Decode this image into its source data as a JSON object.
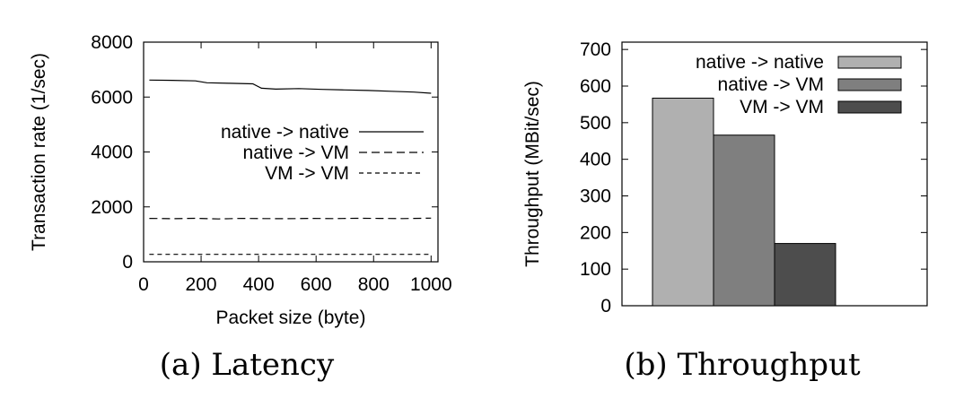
{
  "chart_data": [
    {
      "type": "line",
      "caption": "(a) Latency",
      "xlabel": "Packet size (byte)",
      "ylabel": "Transaction rate (1/sec)",
      "xlim": [
        0,
        1024
      ],
      "ylim": [
        0,
        8000
      ],
      "x_ticks": [
        0,
        200,
        400,
        600,
        800,
        1000
      ],
      "y_ticks": [
        0,
        2000,
        4000,
        6000,
        8000
      ],
      "legend_position": "middle-right",
      "series": [
        {
          "name": "native -> native",
          "style": "solid",
          "points": [
            [
              20,
              6620
            ],
            [
              100,
              6610
            ],
            [
              180,
              6590
            ],
            [
              220,
              6520
            ],
            [
              300,
              6500
            ],
            [
              380,
              6480
            ],
            [
              410,
              6320
            ],
            [
              460,
              6290
            ],
            [
              540,
              6310
            ],
            [
              620,
              6280
            ],
            [
              700,
              6260
            ],
            [
              780,
              6240
            ],
            [
              860,
              6210
            ],
            [
              940,
              6180
            ],
            [
              1000,
              6140
            ]
          ]
        },
        {
          "name": "native -> VM",
          "style": "dashed",
          "points": [
            [
              20,
              1580
            ],
            [
              100,
              1570
            ],
            [
              180,
              1585
            ],
            [
              260,
              1560
            ],
            [
              340,
              1580
            ],
            [
              420,
              1575
            ],
            [
              500,
              1570
            ],
            [
              580,
              1580
            ],
            [
              660,
              1575
            ],
            [
              740,
              1585
            ],
            [
              820,
              1580
            ],
            [
              900,
              1575
            ],
            [
              1000,
              1590
            ]
          ]
        },
        {
          "name": "VM -> VM",
          "style": "dotted",
          "points": [
            [
              20,
              270
            ],
            [
              200,
              270
            ],
            [
              400,
              270
            ],
            [
              600,
              270
            ],
            [
              800,
              270
            ],
            [
              1000,
              270
            ]
          ]
        }
      ]
    },
    {
      "type": "bar",
      "caption": "(b) Throughput",
      "ylabel": "Throughput (MBit/sec)",
      "ylim": [
        0,
        720
      ],
      "y_ticks": [
        0,
        100,
        200,
        300,
        400,
        500,
        600,
        700
      ],
      "legend_position": "top-right",
      "series": [
        {
          "name": "native -> native",
          "value": 567,
          "color": "#b0b0b0"
        },
        {
          "name": "native -> VM",
          "value": 466,
          "color": "#7f7f7f"
        },
        {
          "name": "VM -> VM",
          "value": 170,
          "color": "#4d4d4d"
        }
      ]
    }
  ]
}
